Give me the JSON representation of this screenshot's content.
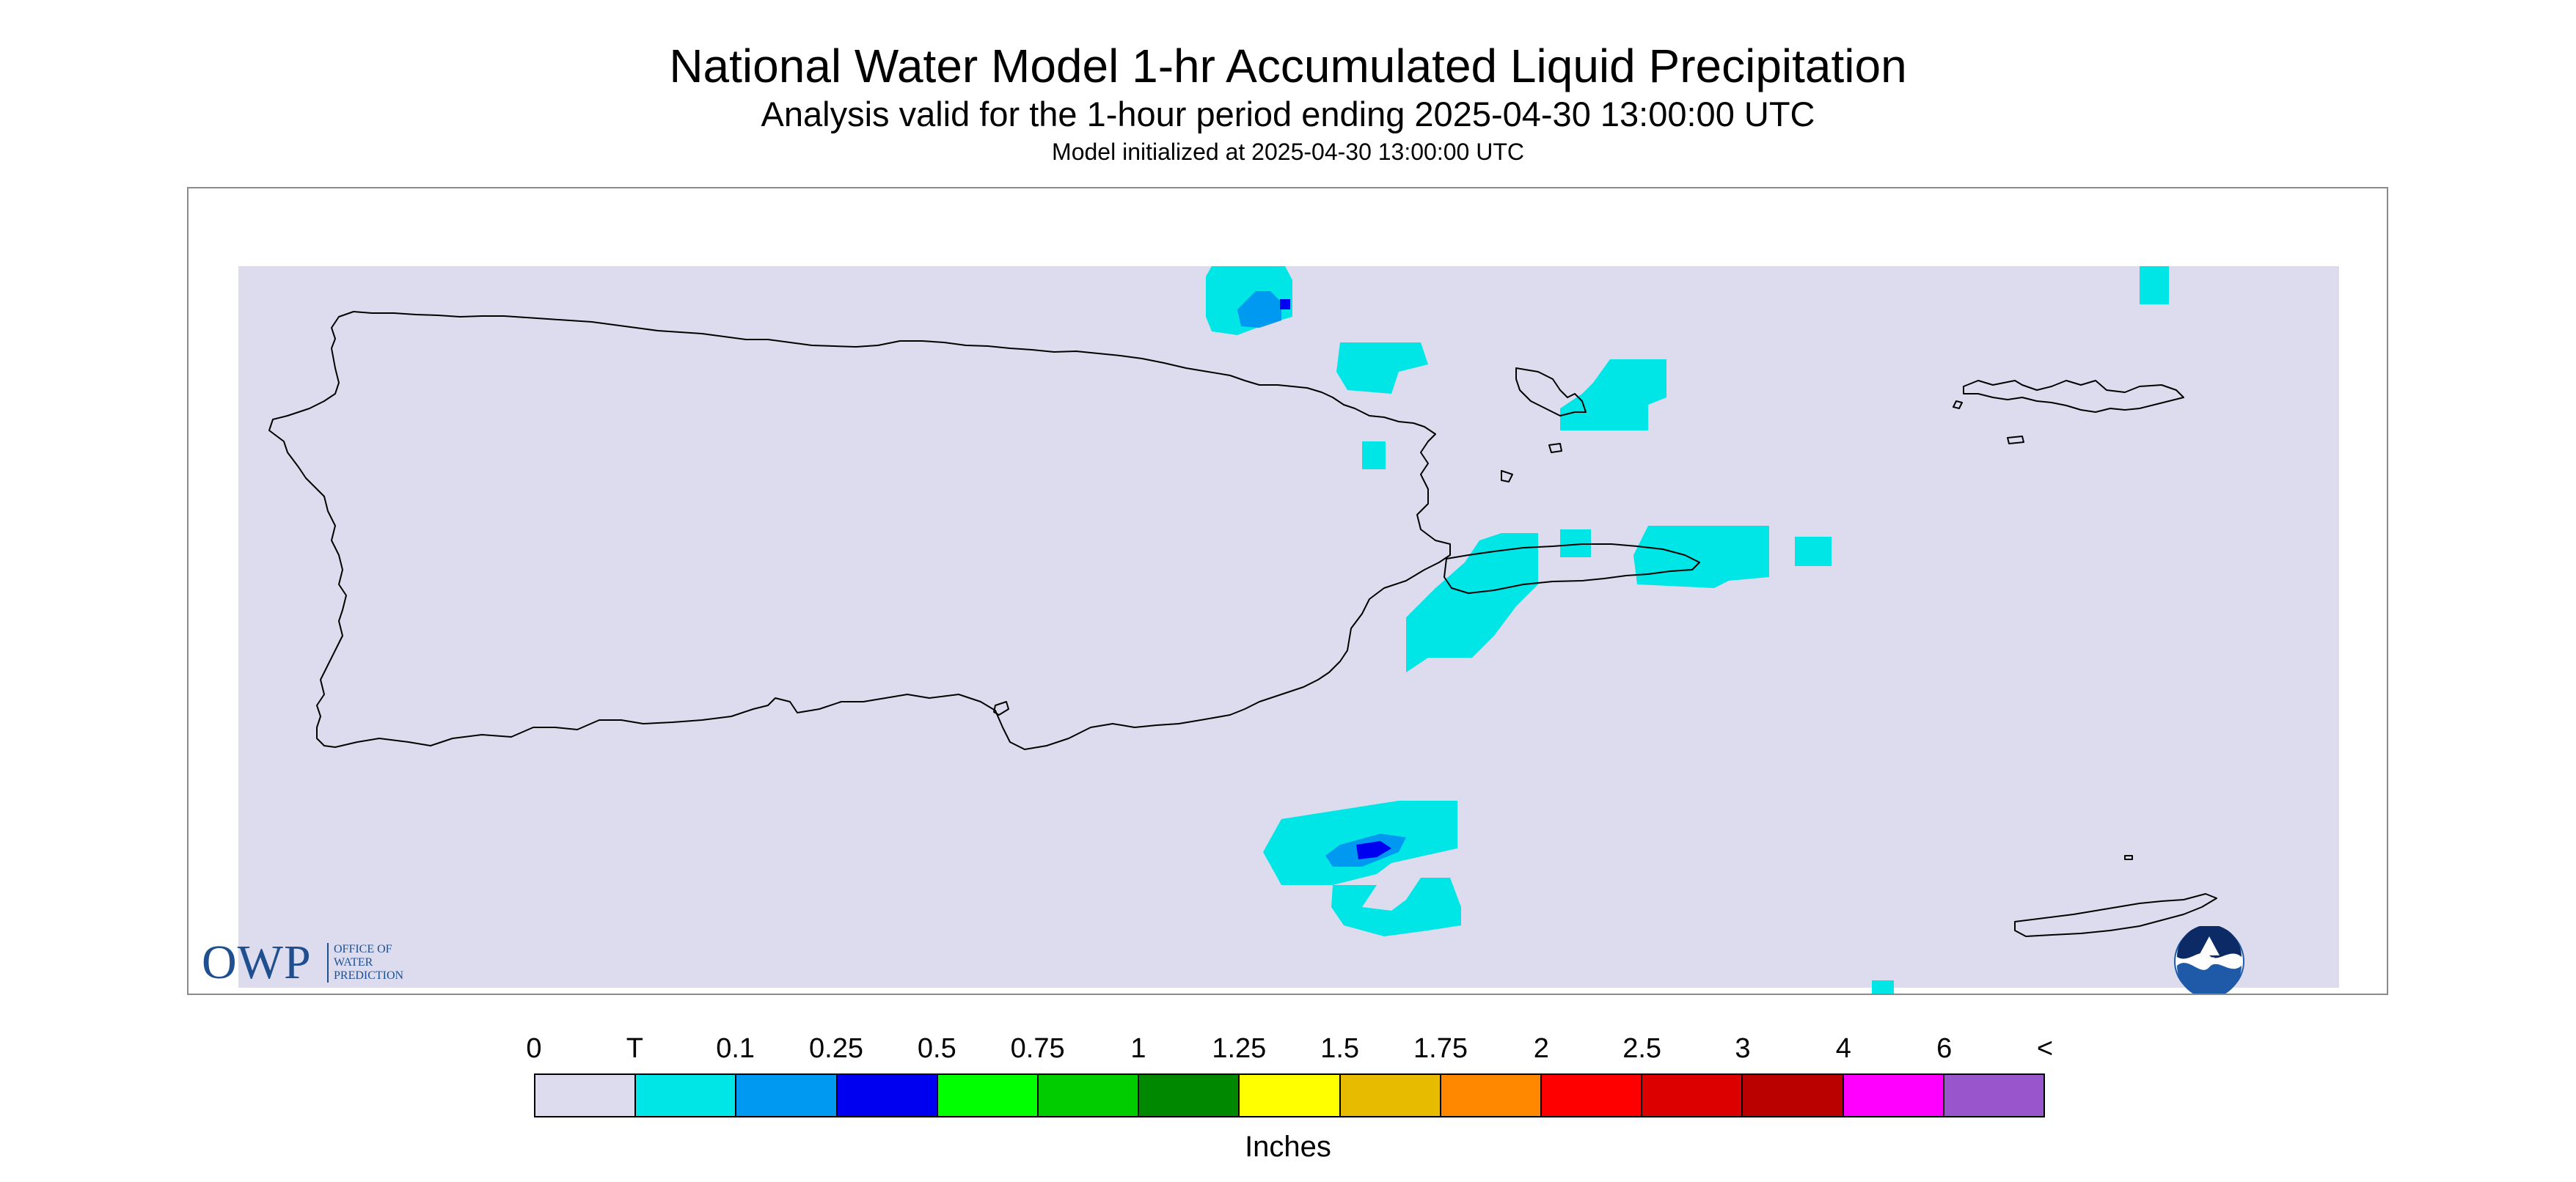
{
  "header": {
    "title": "National Water Model 1-hr Accumulated Liquid Precipitation",
    "subtitle": "Analysis valid for the 1-hour period ending 2025-04-30 13:00:00 UTC",
    "init": "Model initialized at 2025-04-30 13:00:00 UTC"
  },
  "map": {
    "background_color": "#dcdcee",
    "outline_color": "#000000"
  },
  "owp_logo": {
    "abbr": "OWP",
    "line1": "OFFICE OF",
    "line2": "WATER",
    "line3": "PREDICTION",
    "color": "#1f4f8f"
  },
  "noaa_logo": {
    "text": "NOAA",
    "color": "#1e5aa8"
  },
  "legend": {
    "labels": [
      "0",
      "T",
      "0.1",
      "0.25",
      "0.5",
      "0.75",
      "1",
      "1.25",
      "1.5",
      "1.75",
      "2",
      "2.5",
      "3",
      "4",
      "6",
      "<"
    ],
    "colors": [
      "#dcdcee",
      "#00e6e6",
      "#0099f2",
      "#0000f0",
      "#00ff00",
      "#00cc00",
      "#008800",
      "#ffff00",
      "#e6bb00",
      "#ff8800",
      "#ff0000",
      "#dd0000",
      "#bb0000",
      "#ff00ff",
      "#9955cc"
    ],
    "units": "Inches"
  }
}
